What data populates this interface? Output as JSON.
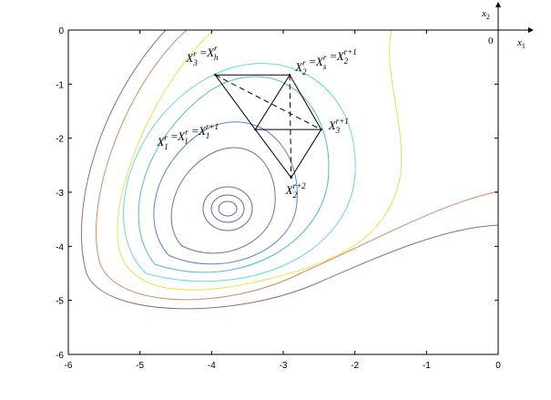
{
  "chart_data": {
    "type": "contour",
    "xlim": [
      -6,
      0
    ],
    "ylim": [
      -6,
      0
    ],
    "xticks": [
      -6,
      -5,
      -4,
      -3,
      -2,
      -1,
      0
    ],
    "yticks": [
      0,
      -1,
      -2,
      -3,
      -4,
      -5,
      -6
    ],
    "points": [
      {
        "x": -3.95,
        "y": -0.83,
        "label": [
          [
            "X",
            "3",
            "r"
          ],
          "=",
          [
            "X",
            "h",
            "r"
          ]
        ]
      },
      {
        "x": -2.91,
        "y": -0.83,
        "label": [
          [
            "X",
            "2",
            "r"
          ],
          "=",
          [
            "X",
            "s",
            "r"
          ],
          "=",
          [
            "X",
            "2",
            "r+1"
          ]
        ]
      },
      {
        "x": -3.39,
        "y": -1.84,
        "label": [
          [
            "X",
            "1",
            "r"
          ],
          "=",
          [
            "X",
            "l",
            "r"
          ],
          "=",
          [
            "X",
            "1",
            "r+1"
          ]
        ]
      },
      {
        "x": -2.47,
        "y": -1.84,
        "label": [
          [
            "X",
            "3",
            "r+1"
          ]
        ]
      },
      {
        "x": -2.89,
        "y": -2.73,
        "label": [
          [
            "X",
            "2",
            "r+2"
          ]
        ]
      }
    ],
    "axes_indicator": {
      "origin": "0",
      "x_label": [
        "x",
        "1"
      ],
      "y_label": [
        "x",
        "2"
      ]
    }
  }
}
